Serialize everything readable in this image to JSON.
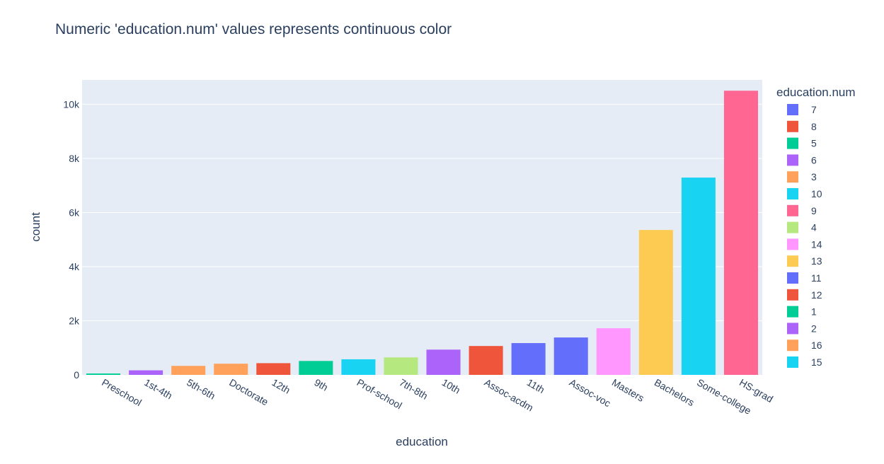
{
  "chart_data": {
    "type": "bar",
    "title": "Numeric 'education.num' values represents continuous color",
    "xlabel": "education",
    "ylabel": "count",
    "ylim": [
      0,
      10900
    ],
    "yticks": [
      0,
      2000,
      4000,
      6000,
      8000,
      10000
    ],
    "ytick_labels": [
      "0",
      "2k",
      "4k",
      "6k",
      "8k",
      "10k"
    ],
    "grid": true,
    "legend_position": "right",
    "legend_title": "education.num",
    "categories": [
      "Preschool",
      "1st-4th",
      "5th-6th",
      "Doctorate",
      "12th",
      "9th",
      "Prof-school",
      "7th-8th",
      "10th",
      "Assoc-acdm",
      "11th",
      "Assoc-voc",
      "Masters",
      "Bachelors",
      "Some-college",
      "HS-grad"
    ],
    "series": [
      {
        "name": "1",
        "category": "Preschool",
        "value": 51,
        "color": "#00cc96"
      },
      {
        "name": "2",
        "category": "1st-4th",
        "value": 168,
        "color": "#ab63fa"
      },
      {
        "name": "3",
        "category": "5th-6th",
        "value": 333,
        "color": "#ffa15a"
      },
      {
        "name": "16",
        "category": "Doctorate",
        "value": 413,
        "color": "#ffa15a"
      },
      {
        "name": "8",
        "category": "12th",
        "value": 433,
        "color": "#ef553b"
      },
      {
        "name": "5",
        "category": "9th",
        "value": 514,
        "color": "#00cc96"
      },
      {
        "name": "15",
        "category": "Prof-school",
        "value": 576,
        "color": "#19d3f3"
      },
      {
        "name": "4",
        "category": "7th-8th",
        "value": 646,
        "color": "#b6e880"
      },
      {
        "name": "6",
        "category": "10th",
        "value": 933,
        "color": "#ab63fa"
      },
      {
        "name": "12",
        "category": "Assoc-acdm",
        "value": 1067,
        "color": "#ef553b"
      },
      {
        "name": "7",
        "category": "11th",
        "value": 1175,
        "color": "#636efa"
      },
      {
        "name": "11",
        "category": "Assoc-voc",
        "value": 1382,
        "color": "#636efa"
      },
      {
        "name": "14",
        "category": "Masters",
        "value": 1723,
        "color": "#ff97ff"
      },
      {
        "name": "13",
        "category": "Bachelors",
        "value": 5355,
        "color": "#fecb52"
      },
      {
        "name": "10",
        "category": "Some-college",
        "value": 7291,
        "color": "#19d3f3"
      },
      {
        "name": "9",
        "category": "HS-grad",
        "value": 10501,
        "color": "#ff6692"
      }
    ],
    "legend": [
      {
        "label": "7",
        "color": "#636efa"
      },
      {
        "label": "8",
        "color": "#ef553b"
      },
      {
        "label": "5",
        "color": "#00cc96"
      },
      {
        "label": "6",
        "color": "#ab63fa"
      },
      {
        "label": "3",
        "color": "#ffa15a"
      },
      {
        "label": "10",
        "color": "#19d3f3"
      },
      {
        "label": "9",
        "color": "#ff6692"
      },
      {
        "label": "4",
        "color": "#b6e880"
      },
      {
        "label": "14",
        "color": "#ff97ff"
      },
      {
        "label": "13",
        "color": "#fecb52"
      },
      {
        "label": "11",
        "color": "#636efa"
      },
      {
        "label": "12",
        "color": "#ef553b"
      },
      {
        "label": "1",
        "color": "#00cc96"
      },
      {
        "label": "2",
        "color": "#ab63fa"
      },
      {
        "label": "16",
        "color": "#ffa15a"
      },
      {
        "label": "15",
        "color": "#19d3f3"
      }
    ]
  }
}
